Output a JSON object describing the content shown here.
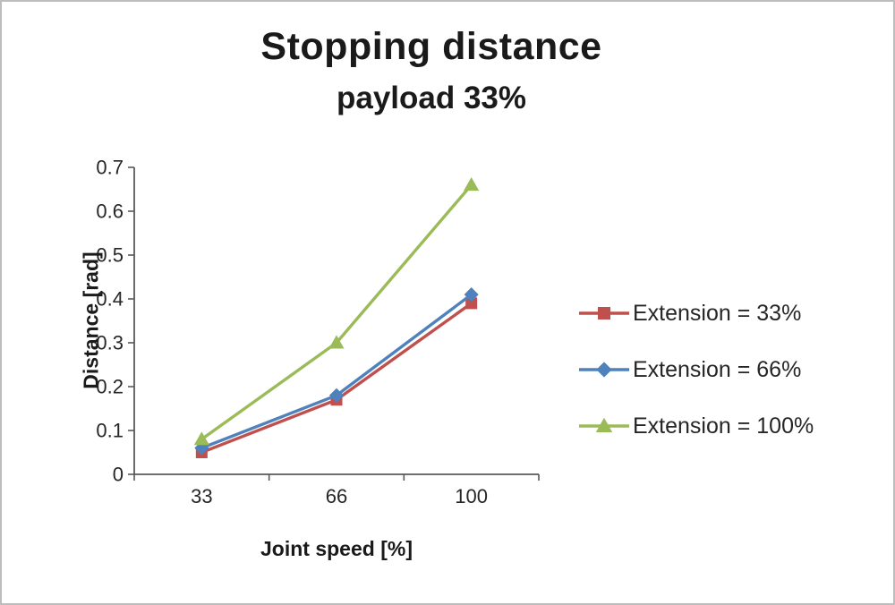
{
  "chart": {
    "title": "Stopping distance",
    "subtitle": "payload 33%"
  },
  "chart_data": {
    "type": "line",
    "title": "Stopping distance",
    "subtitle": "payload 33%",
    "categories": [
      "33",
      "66",
      "100"
    ],
    "series": [
      {
        "name": "Extension = 33%",
        "values": [
          0.05,
          0.17,
          0.39
        ],
        "color": "#C0504D",
        "marker": "square"
      },
      {
        "name": "Extension = 66%",
        "values": [
          0.06,
          0.18,
          0.41
        ],
        "color": "#4F81BD",
        "marker": "diamond"
      },
      {
        "name": "Extension = 100%",
        "values": [
          0.08,
          0.3,
          0.66
        ],
        "color": "#9BBB59",
        "marker": "triangle"
      }
    ],
    "xlabel": "Joint speed [%]",
    "ylabel": "Distance [rad]",
    "ylim": [
      0,
      0.7
    ],
    "ytick_step": 0.1,
    "yticks": [
      "0",
      "0.1",
      "0.2",
      "0.3",
      "0.4",
      "0.5",
      "0.6",
      "0.7"
    ],
    "grid": false,
    "legend_position": "right",
    "axis_color": "#595959"
  }
}
